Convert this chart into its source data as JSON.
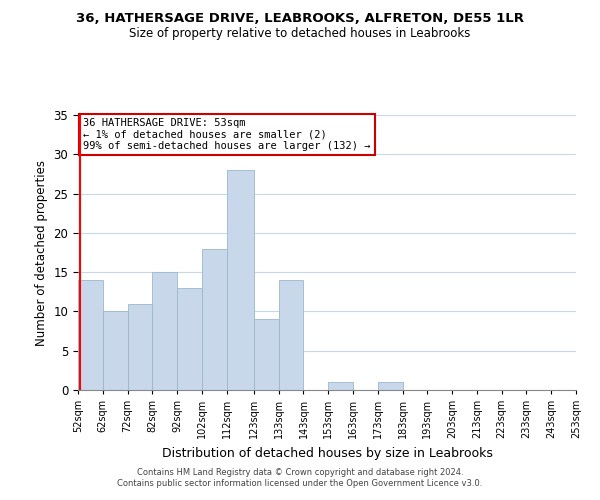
{
  "title": "36, HATHERSAGE DRIVE, LEABROOKS, ALFRETON, DE55 1LR",
  "subtitle": "Size of property relative to detached houses in Leabrooks",
  "xlabel": "Distribution of detached houses by size in Leabrooks",
  "ylabel": "Number of detached properties",
  "bin_edges": [
    52,
    62,
    72,
    82,
    92,
    102,
    112,
    123,
    133,
    143,
    153,
    163,
    173,
    183,
    193,
    203,
    213,
    223,
    233,
    243,
    253
  ],
  "counts": [
    14,
    10,
    11,
    15,
    13,
    18,
    28,
    9,
    14,
    0,
    1,
    0,
    1,
    0,
    0,
    0,
    0,
    0,
    0,
    0
  ],
  "bar_color": "#c8d8ea",
  "bar_edgecolor": "#9ab8cc",
  "ylim": [
    0,
    35
  ],
  "yticks": [
    0,
    5,
    10,
    15,
    20,
    25,
    30,
    35
  ],
  "property_value": 53,
  "annotation_title": "36 HATHERSAGE DRIVE: 53sqm",
  "annotation_line1": "← 1% of detached houses are smaller (2)",
  "annotation_line2": "99% of semi-detached houses are larger (132) →",
  "annotation_box_color": "#cc0000",
  "footer_line1": "Contains HM Land Registry data © Crown copyright and database right 2024.",
  "footer_line2": "Contains public sector information licensed under the Open Government Licence v3.0.",
  "background_color": "#ffffff",
  "grid_color": "#c8d8e8"
}
